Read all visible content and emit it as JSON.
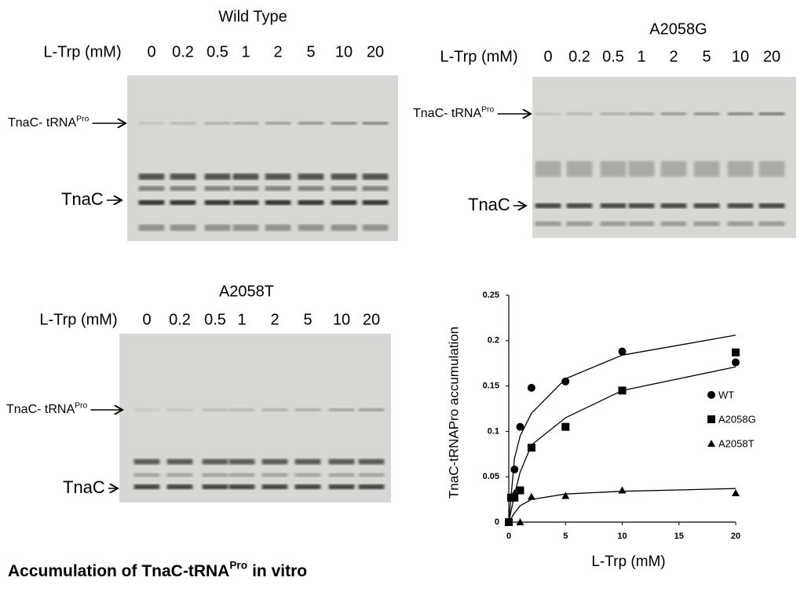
{
  "title": {
    "text": "Accumulation of TnaC-tRNA",
    "sup": "Pro",
    "rest": "in vitro"
  },
  "gels": [
    {
      "title": "Wild Type",
      "conc_label": "L-Trp (mM)",
      "lanes": [
        0,
        0.2,
        0.5,
        1,
        2,
        5,
        10,
        20
      ],
      "trna_label": {
        "text": "TnaC- tRNA",
        "sup": "Pro"
      },
      "tnac_label": "TnaC"
    },
    {
      "title": "A2058G",
      "conc_label": "L-Trp (mM)",
      "lanes": [
        0,
        0.2,
        0.5,
        1,
        2,
        5,
        10,
        20
      ],
      "trna_label": {
        "text": "TnaC- tRNA",
        "sup": "Pro"
      },
      "tnac_label": "TnaC"
    },
    {
      "title": "A2058T",
      "conc_label": "L-Trp (mM)",
      "lanes": [
        0,
        0.2,
        0.5,
        1,
        2,
        5,
        10,
        20
      ],
      "trna_label": {
        "text": "TnaC- tRNA",
        "sup": "Pro"
      },
      "tnac_label": "TnaC"
    }
  ],
  "chart_data": {
    "type": "scatter",
    "x_label": "L-Trp (mM)",
    "y_label": "TnaC-tRNAPro accumulation",
    "xlim": [
      0,
      20
    ],
    "xticks": [
      0,
      5,
      10,
      15,
      20
    ],
    "ylim": [
      0,
      0.25
    ],
    "yticks": [
      0,
      0.05,
      0.1,
      0.15,
      0.2,
      0.25
    ],
    "legend": "right",
    "grid": false,
    "series": [
      {
        "name": "WT",
        "marker": "circle",
        "color": "#000000",
        "x": [
          0,
          0.5,
          1,
          2,
          5,
          10,
          20
        ],
        "values": [
          0,
          0.058,
          0.105,
          0.148,
          0.155,
          0.188,
          0.176
        ],
        "fit": {
          "x": [
            0,
            0.5,
            1,
            2,
            5,
            10,
            20
          ],
          "values": [
            0,
            0.07,
            0.095,
            0.12,
            0.158,
            0.184,
            0.206
          ]
        }
      },
      {
        "name": "A2058G",
        "marker": "square",
        "color": "#000000",
        "x": [
          0,
          0.2,
          0.5,
          1,
          2,
          5,
          10,
          20
        ],
        "values": [
          0,
          0.027,
          0.027,
          0.035,
          0.082,
          0.105,
          0.145,
          0.187
        ],
        "fit": {
          "x": [
            0,
            0.5,
            1,
            2,
            5,
            10,
            20
          ],
          "values": [
            0,
            0.03,
            0.055,
            0.085,
            0.115,
            0.145,
            0.171
          ]
        }
      },
      {
        "name": "A2058T",
        "marker": "triangle",
        "color": "#000000",
        "x": [
          0,
          0.5,
          1,
          2,
          5,
          10,
          20
        ],
        "values": [
          0,
          0.032,
          0,
          0.028,
          0.029,
          0.035,
          0.032
        ],
        "fit": {
          "x": [
            0,
            0.5,
            1,
            2,
            5,
            10,
            20
          ],
          "values": [
            0,
            0.01,
            0.018,
            0.025,
            0.031,
            0.034,
            0.037
          ]
        }
      }
    ]
  }
}
